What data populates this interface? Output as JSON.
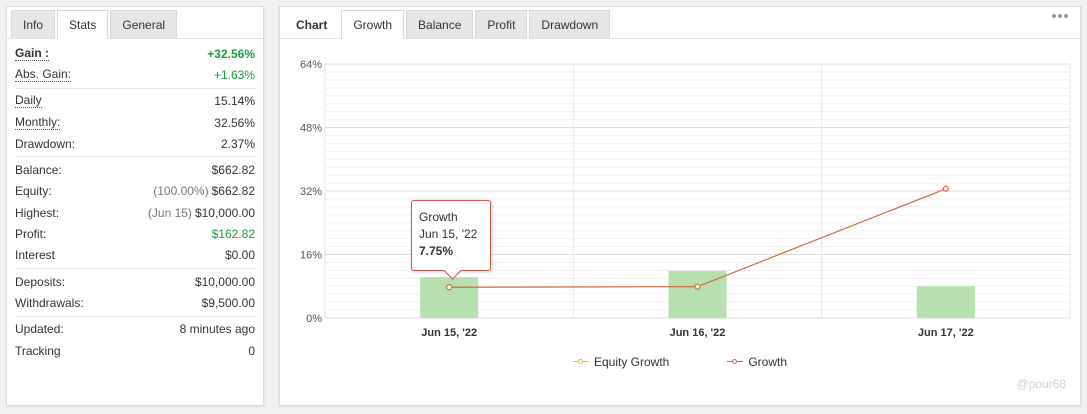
{
  "left_tabs": [
    "Info",
    "Stats",
    "General"
  ],
  "stats": {
    "gain": {
      "label": "Gain :",
      "value": "+32.56%"
    },
    "abs_gain": {
      "label": "Abs. Gain:",
      "value": "+1.63%"
    },
    "daily": {
      "label": "Daily",
      "value": "15.14%"
    },
    "monthly": {
      "label": "Monthly:",
      "value": "32.56%"
    },
    "drawdown": {
      "label": "Drawdown:",
      "value": "2.37%"
    },
    "balance": {
      "label": "Balance:",
      "value": "$662.82"
    },
    "equity": {
      "label": "Equity:",
      "pre": "(100.00%)",
      "value": "$662.82"
    },
    "highest": {
      "label": "Highest:",
      "pre": "(Jun 15)",
      "value": "$10,000.00"
    },
    "profit": {
      "label": "Profit:",
      "value": "$162.82"
    },
    "interest": {
      "label": "Interest",
      "value": "$0.00"
    },
    "deposits": {
      "label": "Deposits:",
      "value": "$10,000.00"
    },
    "withdrawals": {
      "label": "Withdrawals:",
      "value": "$9,500.00"
    },
    "updated": {
      "label": "Updated:",
      "value": "8 minutes ago"
    },
    "tracking": {
      "label": "Tracking",
      "value": "0"
    }
  },
  "right_tabs": [
    "Chart",
    "Growth",
    "Balance",
    "Profit",
    "Drawdown"
  ],
  "colors": {
    "gain_green": "#1a9e3a",
    "bar": "#b7dfb0",
    "growth_line": "#d36a3c",
    "equity_line": "#e8b93a"
  },
  "tooltip": {
    "title": "Growth",
    "date": "Jun 15, '22",
    "value": "7.75%"
  },
  "legend": {
    "equity": "Equity Growth",
    "growth": "Growth"
  },
  "watermark": "@pour68",
  "chart_data": {
    "type": "bar",
    "categories": [
      "Jun 15, '22",
      "Jun 16, '22",
      "Jun 17, '22"
    ],
    "series": [
      {
        "name": "Equity Growth",
        "type": "bar",
        "values": [
          10.3,
          11.9,
          8.0
        ]
      },
      {
        "name": "Growth",
        "type": "line",
        "values": [
          7.75,
          7.9,
          32.56
        ]
      }
    ],
    "yticks": [
      "0%",
      "16%",
      "32%",
      "48%",
      "64%"
    ],
    "ylim": [
      0,
      64
    ],
    "grid": true,
    "legend_position": "bottom"
  }
}
